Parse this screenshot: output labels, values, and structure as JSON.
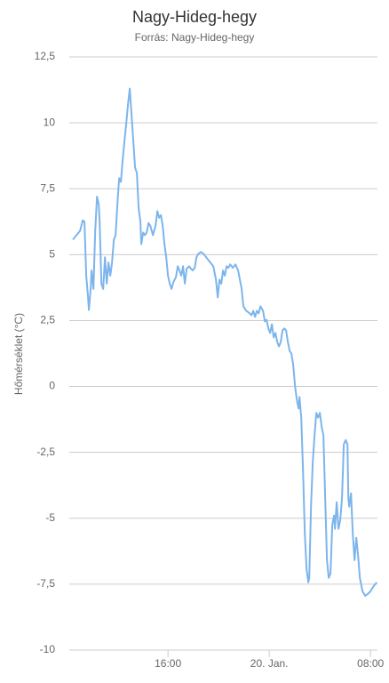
{
  "chart_data": {
    "type": "line",
    "title": "Nagy-Hideg-hegy",
    "subtitle": "Forrás: Nagy-Hideg-hegy",
    "y_label": "Hőmérséklet (°C)",
    "x": [
      8.49,
      8.77,
      9.05,
      9.26,
      9.4,
      9.54,
      9.68,
      9.75,
      9.89,
      9.96,
      10.11,
      10.25,
      10.39,
      10.53,
      10.6,
      10.74,
      10.88,
      11.02,
      11.16,
      11.3,
      11.44,
      11.58,
      11.72,
      11.86,
      12.0,
      12.14,
      12.28,
      12.42,
      12.56,
      12.7,
      12.84,
      12.98,
      13.12,
      13.26,
      13.4,
      13.54,
      13.68,
      13.82,
      13.89,
      14.04,
      14.18,
      14.32,
      14.46,
      14.6,
      14.81,
      15.02,
      15.16,
      15.3,
      15.44,
      15.58,
      15.72,
      15.86,
      16.0,
      16.14,
      16.28,
      16.42,
      16.63,
      16.77,
      16.91,
      17.05,
      17.19,
      17.33,
      17.47,
      17.68,
      17.82,
      17.96,
      18.11,
      18.25,
      18.39,
      18.6,
      18.81,
      19.02,
      19.3,
      19.58,
      19.79,
      19.93,
      20.07,
      20.21,
      20.35,
      20.49,
      20.63,
      20.77,
      20.91,
      21.12,
      21.33,
      21.54,
      21.68,
      21.82,
      21.96,
      22.18,
      22.39,
      22.6,
      22.74,
      22.88,
      23.02,
      23.16,
      23.3,
      23.51,
      23.65,
      23.79,
      23.93,
      24.07,
      24.21,
      24.35,
      24.49,
      24.63,
      24.77,
      24.91,
      25.05,
      25.19,
      25.33,
      25.47,
      25.61,
      25.75,
      25.89,
      26.04,
      26.18,
      26.32,
      26.39,
      26.53,
      26.67,
      26.81,
      26.95,
      27.09,
      27.16,
      27.3,
      27.44,
      27.58,
      27.72,
      27.86,
      28.0,
      28.14,
      28.28,
      28.42,
      28.56,
      28.7,
      28.84,
      28.98,
      29.12,
      29.19,
      29.33,
      29.47,
      29.61,
      29.75,
      29.89,
      30.04,
      30.18,
      30.25,
      30.32,
      30.46,
      30.6,
      30.74,
      30.88,
      31.02,
      31.16,
      31.37,
      31.58,
      31.79,
      32.0,
      32.21,
      32.49
    ],
    "series": [
      {
        "name": "Hőmérséklet",
        "color": "#7cb5ec",
        "values": [
          5.57,
          5.74,
          5.9,
          6.3,
          6.25,
          4.2,
          3.4,
          2.9,
          3.7,
          4.4,
          3.7,
          5.9,
          7.2,
          6.9,
          6.25,
          3.9,
          3.7,
          4.9,
          3.9,
          4.7,
          4.2,
          4.7,
          5.57,
          5.74,
          6.9,
          7.9,
          7.76,
          8.6,
          9.3,
          9.97,
          10.7,
          11.3,
          10.3,
          9.3,
          8.3,
          8.1,
          6.76,
          6.25,
          5.4,
          5.84,
          5.74,
          5.84,
          6.2,
          6.1,
          5.74,
          6.1,
          6.65,
          6.4,
          6.5,
          6.1,
          5.4,
          4.9,
          4.2,
          3.9,
          3.7,
          3.95,
          4.15,
          4.56,
          4.4,
          4.2,
          4.56,
          3.9,
          4.46,
          4.56,
          4.46,
          4.4,
          4.5,
          4.9,
          5.03,
          5.1,
          5.03,
          4.9,
          4.73,
          4.56,
          4.05,
          3.38,
          4.05,
          3.9,
          4.4,
          4.2,
          4.56,
          4.5,
          4.63,
          4.5,
          4.63,
          4.4,
          4.05,
          3.7,
          3.04,
          2.87,
          2.8,
          2.7,
          2.87,
          2.64,
          2.87,
          2.77,
          3.04,
          2.87,
          2.47,
          2.53,
          2.2,
          2.03,
          2.36,
          1.86,
          2.03,
          1.69,
          1.52,
          1.69,
          2.13,
          2.2,
          2.13,
          1.69,
          1.35,
          1.25,
          0.84,
          0,
          -0.5,
          -0.84,
          -0.4,
          -1.18,
          -3.2,
          -5.57,
          -6.93,
          -7.43,
          -7.26,
          -4.56,
          -2.87,
          -1.86,
          -1.0,
          -1.18,
          -1.0,
          -1.52,
          -1.86,
          -4.22,
          -6.59,
          -7.26,
          -7.1,
          -5.24,
          -4.9,
          -5.4,
          -4.39,
          -5.4,
          -5.07,
          -4.22,
          -2.2,
          -2.03,
          -2.2,
          -4.22,
          -4.56,
          -4.05,
          -5.57,
          -6.59,
          -5.74,
          -6.42,
          -7.26,
          -7.77,
          -7.94,
          -7.87,
          -7.77,
          -7.6,
          -7.43
        ]
      }
    ],
    "xlim": [
      8.2,
      32.55
    ],
    "xticks": [
      {
        "value": 16,
        "label": "16:00"
      },
      {
        "value": 24,
        "label": "20. Jan."
      },
      {
        "value": 32,
        "label": "08:00"
      }
    ],
    "ylim": [
      -10,
      12.5
    ],
    "yticks": [
      {
        "value": -10,
        "label": "-10"
      },
      {
        "value": -7.5,
        "label": "-7,5"
      },
      {
        "value": -5,
        "label": "-5"
      },
      {
        "value": -2.5,
        "label": "-2,5"
      },
      0,
      {
        "value": 2.5,
        "label": "2,5"
      },
      5,
      {
        "value": 7.5,
        "label": "7,5"
      },
      10,
      {
        "value": 12.5,
        "label": "12,5"
      }
    ],
    "grid": true
  }
}
